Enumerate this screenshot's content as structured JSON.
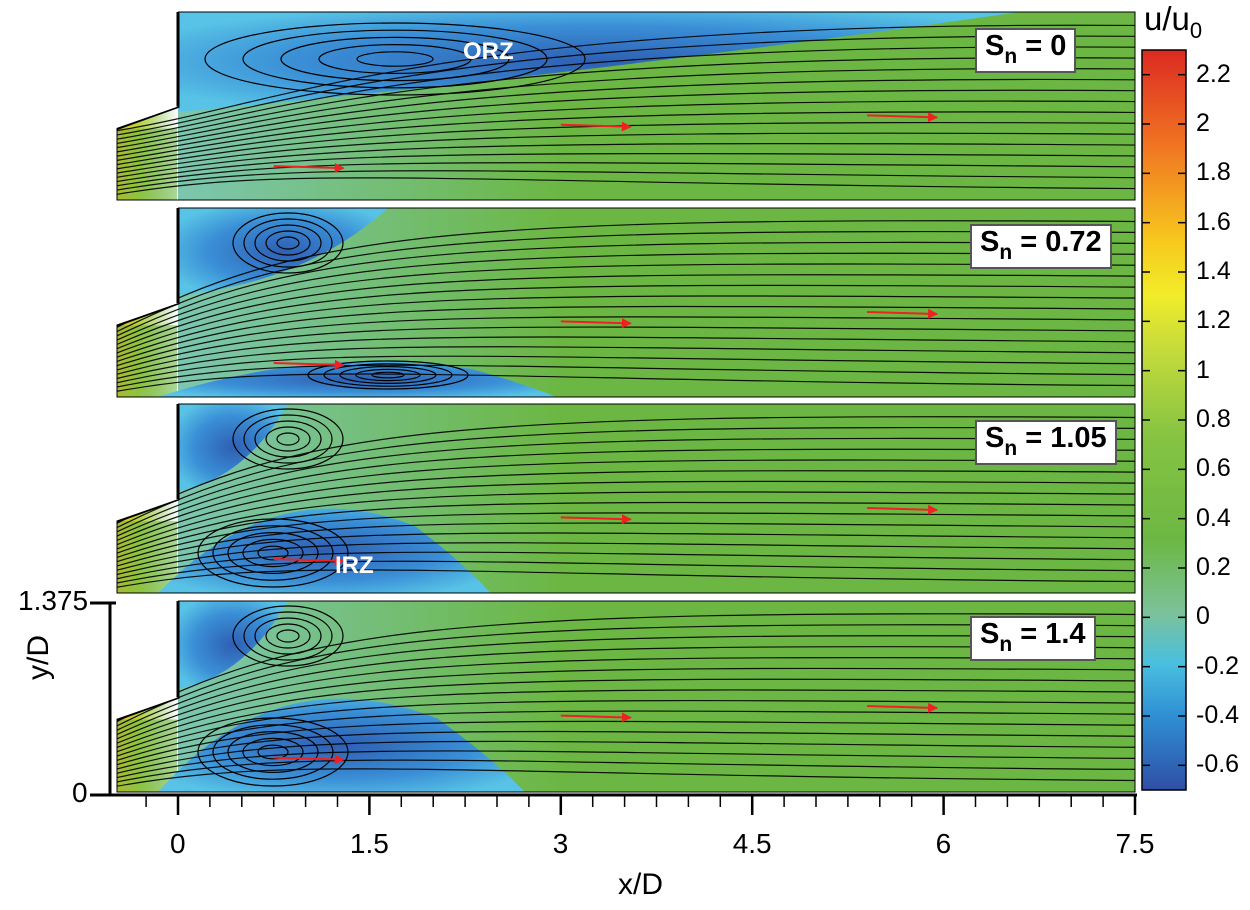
{
  "chart_data": {
    "type": "heatmap",
    "description_units": "contour of u/u0 with streamlines",
    "xlabel": "x/D",
    "ylabel": "y/D",
    "x_ticks": [
      "0",
      "1.5",
      "3",
      "4.5",
      "6",
      "7.5"
    ],
    "x_tick_values": [
      0,
      1.5,
      3,
      4.5,
      6,
      7.5
    ],
    "y_ticks": [
      "0",
      "1.375"
    ],
    "y_tick_values": [
      0,
      1.375
    ],
    "xlim": [
      -0.25,
      7.5
    ],
    "ylim": [
      0,
      1.375
    ],
    "colorbar": {
      "title_main": "u/u",
      "title_sub": "0",
      "ticks": [
        "2.2",
        "2",
        "1.8",
        "1.6",
        "1.4",
        "1.2",
        "1",
        "0.8",
        "0.6",
        "0.4",
        "0.2",
        "0",
        "-0.2",
        "-0.4",
        "-0.6"
      ],
      "range": [
        -0.7,
        2.3
      ]
    },
    "panels": [
      {
        "label_main": "S",
        "label_sub": "n",
        "label_value": "= 0",
        "region_label": "ORZ"
      },
      {
        "label_main": "S",
        "label_sub": "n",
        "label_value": "= 0.72",
        "region_label": ""
      },
      {
        "label_main": "S",
        "label_sub": "n",
        "label_value": "= 1.05",
        "region_label": "IRZ"
      },
      {
        "label_main": "S",
        "label_sub": "n",
        "label_value": "= 1.4",
        "region_label": ""
      }
    ]
  },
  "colors": {
    "jet_green": "#6cb743",
    "recirculation_blue": "#3a8fd6",
    "arrow_red": "#ee2222"
  }
}
